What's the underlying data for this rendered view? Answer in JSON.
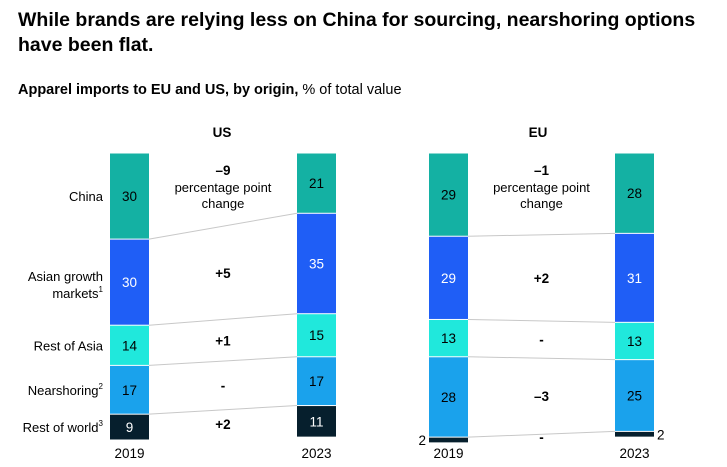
{
  "headline": "While brands are relying less on China for sourcing, nearshoring options have been flat.",
  "subtitle": {
    "bold": "Apparel imports to EU and US, by origin,",
    "rest": " % of total value"
  },
  "colors": {
    "China": "#14b1a3",
    "Asian growth markets": "#1f5ef6",
    "Rest of Asia": "#20e8dc",
    "Nearshoring": "#1aa2ec",
    "Rest of world": "#061f2d",
    "connector": "#c8c8c8"
  },
  "chart_data": [
    {
      "type": "bar",
      "title": "US",
      "categories": [
        "China",
        "Asian growth markets",
        "Rest of Asia",
        "Nearshoring",
        "Rest of world"
      ],
      "category_labels": [
        "China",
        "Asian growth markets",
        "Rest of Asia",
        "Nearshoring",
        "Rest of world"
      ],
      "category_superscripts": [
        "",
        "1",
        "",
        "2",
        "3"
      ],
      "x": [
        "2019",
        "2023"
      ],
      "series": [
        {
          "name": "2019",
          "values": [
            30,
            30,
            14,
            17,
            9
          ]
        },
        {
          "name": "2023",
          "values": [
            21,
            35,
            15,
            17,
            11
          ]
        }
      ],
      "changes": [
        "–9",
        "+5",
        "+1",
        "-",
        "+2"
      ],
      "change_note": "percentage point change",
      "stacked": true
    },
    {
      "type": "bar",
      "title": "EU",
      "categories": [
        "China",
        "Asian growth markets",
        "Rest of Asia",
        "Nearshoring",
        "Rest of world"
      ],
      "x": [
        "2019",
        "2023"
      ],
      "series": [
        {
          "name": "2019",
          "values": [
            29,
            29,
            13,
            28,
            2
          ]
        },
        {
          "name": "2023",
          "values": [
            28,
            31,
            13,
            25,
            2
          ]
        }
      ],
      "changes": [
        "–1",
        "+2",
        "-",
        "–3",
        "-"
      ],
      "change_note": "percentage point change",
      "stacked": true
    }
  ]
}
